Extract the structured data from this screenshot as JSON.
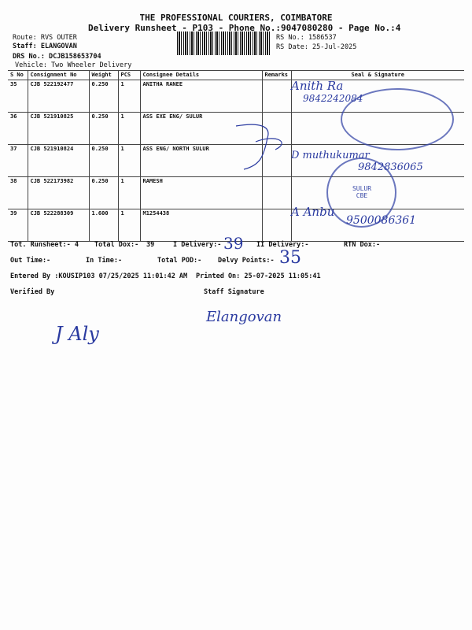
{
  "header": {
    "company": "THE PROFESSIONAL COURIERS, COIMBATORE",
    "subtitle": "Delivery Runsheet - P103 - Phone No.:9047080280 - Page No.:4",
    "route": "Route: RVS OUTER",
    "staff": "Staff: ELANGOVAN",
    "drs": "DRS No.: DCJB158653704",
    "vehicle": "Vehicle: Two Wheeler Delivery",
    "rs_no": "RS No.: 1586537",
    "rs_date": "RS Date: 25-Jul-2025"
  },
  "table": {
    "columns": [
      "S No",
      "Consignment No",
      "Weight",
      "PCS",
      "Consignee Details",
      "Remarks",
      "Seal & Signature"
    ],
    "rows": [
      {
        "sno": "35",
        "cons": "CJB 522192477",
        "weight": "0.250",
        "pcs": "1",
        "consignee": "ANITHA RANEE",
        "remarks": ""
      },
      {
        "sno": "36",
        "cons": "CJB 521910825",
        "weight": "0.250",
        "pcs": "1",
        "consignee": "ASS EXE ENG/ SULUR",
        "remarks": ""
      },
      {
        "sno": "37",
        "cons": "CJB 521910824",
        "weight": "0.250",
        "pcs": "1",
        "consignee": "ASS ENG/ NORTH SULUR",
        "remarks": ""
      },
      {
        "sno": "38",
        "cons": "CJB 522173982",
        "weight": "0.250",
        "pcs": "1",
        "consignee": "RAMESH",
        "remarks": ""
      },
      {
        "sno": "39",
        "cons": "CJB 522288309",
        "weight": "1.600",
        "pcs": "1",
        "consignee": "M1254438",
        "remarks": ""
      }
    ]
  },
  "handwritten": {
    "sig1": "Anith Ra",
    "phone1": "9842242084",
    "sig2": "D muthukumar",
    "phone2": "9842836065",
    "sig3": "A Anbu",
    "phone3": "9500086361",
    "i_delivery": "39",
    "delvy_points": "35",
    "verifier": "J Aly",
    "staff_sig": "Elangovan"
  },
  "summary": {
    "tot_runsheet": "Tot. Runsheet:- 4",
    "total_dox": "Total Dox:-",
    "total_dox_val": "39",
    "i_delivery": "I Delivery:-",
    "ii_delivery": "II Delivery:-",
    "rtn_dox": "RTN Dox:-",
    "out_time": "Out Time:-",
    "in_time": "In Time:-",
    "total_pod": "Total POD:-",
    "delvy_points": "Delvy Points:-",
    "entered_by": "Entered By :KOUSIP103 07/25/2025 11:01:42 AM",
    "printed_on": "Printed On: 25-07-2025 11:05:41",
    "verified_by": "Verified By",
    "staff_signature": "Staff Signature"
  },
  "stamp": {
    "text": "SULUR CBE",
    "color": "#3a4aa8"
  }
}
